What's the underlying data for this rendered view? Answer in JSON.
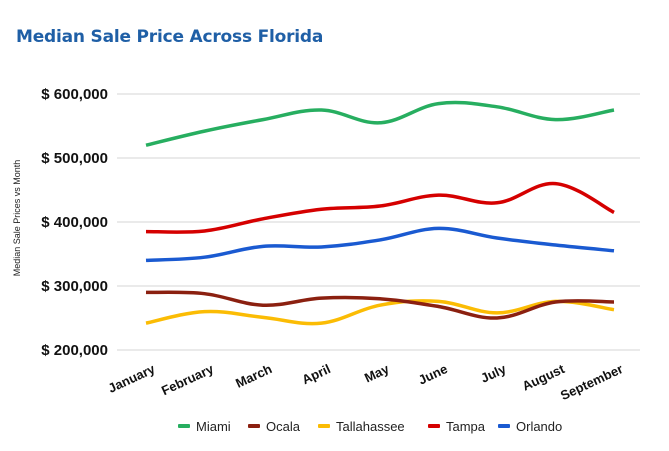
{
  "chart_data": {
    "type": "line",
    "title": "Median Sale Price Across Florida",
    "xlabel": "",
    "ylabel": "Median Sale Prices vs Month",
    "categories": [
      "January",
      "February",
      "March",
      "April",
      "May",
      "June",
      "July",
      "August",
      "September"
    ],
    "ylim": [
      200000,
      600000
    ],
    "yticks": [
      200000,
      300000,
      400000,
      500000,
      600000
    ],
    "ytick_labels": [
      "$ 200,000",
      "$ 300,000",
      "$ 400,000",
      "$ 500,000",
      "$ 600,000"
    ],
    "grid": true,
    "legend_position": "bottom",
    "smooth": true,
    "series": [
      {
        "name": "Miami",
        "color": "#27ae60",
        "values": [
          520000,
          542000,
          560000,
          575000,
          555000,
          585000,
          580000,
          560000,
          575000
        ]
      },
      {
        "name": "Ocala",
        "color": "#8b2010",
        "values": [
          290000,
          288000,
          270000,
          281000,
          280000,
          268000,
          250000,
          275000,
          275000
        ]
      },
      {
        "name": "Tallahassee",
        "color": "#fbbc04",
        "values": [
          242000,
          260000,
          251000,
          242000,
          270000,
          276000,
          258000,
          276000,
          263000
        ]
      },
      {
        "name": "Tampa",
        "color": "#d50000",
        "values": [
          385000,
          386000,
          405000,
          420000,
          425000,
          442000,
          430000,
          460000,
          415000
        ]
      },
      {
        "name": "Orlando",
        "color": "#1a5ad1",
        "values": [
          340000,
          345000,
          362000,
          361000,
          372000,
          390000,
          375000,
          364000,
          355000
        ]
      }
    ]
  }
}
